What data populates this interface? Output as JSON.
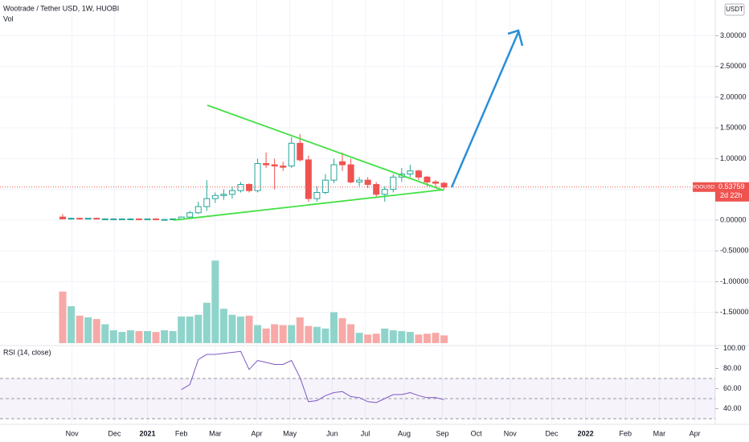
{
  "header": {
    "currency": "USDT"
  },
  "chart_data": [
    {
      "type": "candlestick",
      "title": "Wootrade / Tether USD, 1W, HUOBI",
      "x": [
        0,
        1,
        2,
        3,
        4,
        5,
        6,
        7,
        8,
        9,
        10,
        11,
        12,
        13,
        14,
        15,
        16,
        17,
        18,
        19,
        20,
        21,
        22,
        23,
        24,
        25,
        26,
        27,
        28,
        29,
        30,
        31,
        32,
        33,
        34,
        35,
        36,
        37,
        38,
        39,
        40,
        41,
        42,
        43,
        44,
        45
      ],
      "open": [
        0.05,
        0.02,
        0.03,
        0.02,
        0.03,
        0.02,
        0.02,
        0.02,
        0.02,
        0.02,
        0.01,
        0.02,
        0.01,
        0.01,
        0.02,
        0.05,
        0.12,
        0.22,
        0.35,
        0.4,
        0.42,
        0.48,
        0.58,
        0.48,
        0.92,
        0.9,
        0.88,
        0.88,
        1.25,
        0.98,
        0.35,
        0.45,
        0.65,
        0.95,
        0.9,
        0.62,
        0.65,
        0.58,
        0.42,
        0.5,
        0.7,
        0.75,
        0.8,
        0.7,
        0.62,
        0.6
      ],
      "high": [
        0.1,
        0.04,
        0.04,
        0.03,
        0.04,
        0.03,
        0.03,
        0.03,
        0.03,
        0.03,
        0.02,
        0.03,
        0.02,
        0.03,
        0.06,
        0.15,
        0.3,
        0.65,
        0.45,
        0.5,
        0.55,
        0.62,
        0.6,
        1.0,
        1.1,
        1.0,
        0.95,
        1.35,
        1.4,
        1.05,
        0.55,
        0.75,
        1.0,
        1.1,
        1.0,
        0.7,
        0.7,
        0.62,
        0.55,
        0.75,
        0.85,
        0.9,
        0.82,
        0.72,
        0.65,
        0.62
      ],
      "low": [
        0.01,
        0.01,
        0.01,
        0.01,
        0.02,
        0.01,
        0.01,
        0.01,
        0.01,
        0.01,
        0.0,
        0.01,
        0.0,
        0.0,
        0.01,
        0.04,
        0.1,
        0.15,
        0.28,
        0.33,
        0.35,
        0.45,
        0.45,
        0.45,
        0.85,
        0.5,
        0.8,
        0.85,
        0.95,
        0.3,
        0.3,
        0.42,
        0.6,
        0.8,
        0.6,
        0.55,
        0.52,
        0.38,
        0.3,
        0.45,
        0.62,
        0.7,
        0.65,
        0.55,
        0.52,
        0.5
      ],
      "close": [
        0.02,
        0.03,
        0.02,
        0.03,
        0.02,
        0.02,
        0.02,
        0.02,
        0.02,
        0.01,
        0.02,
        0.01,
        0.01,
        0.02,
        0.05,
        0.12,
        0.22,
        0.35,
        0.4,
        0.42,
        0.48,
        0.58,
        0.48,
        0.92,
        0.9,
        0.88,
        0.86,
        1.25,
        0.98,
        0.35,
        0.45,
        0.65,
        0.9,
        0.9,
        0.62,
        0.65,
        0.58,
        0.42,
        0.5,
        0.7,
        0.75,
        0.8,
        0.7,
        0.62,
        0.6,
        0.53759
      ],
      "up_color": "#26a69a",
      "down_color": "#ef5350",
      "xlim": [
        -7.4,
        77
      ],
      "xticks": [
        {
          "value": 1.1,
          "label": "Nov"
        },
        {
          "value": 6.1,
          "label": "Dec"
        },
        {
          "value": 10,
          "label": "2021"
        },
        {
          "value": 14,
          "label": "Feb"
        },
        {
          "value": 18,
          "label": "Mar"
        },
        {
          "value": 22.9,
          "label": "Apr"
        },
        {
          "value": 26.8,
          "label": "May"
        },
        {
          "value": 31.8,
          "label": "Jun"
        },
        {
          "value": 35.7,
          "label": "Jul"
        },
        {
          "value": 40.3,
          "label": "Aug"
        },
        {
          "value": 44.8,
          "label": "Sep"
        },
        {
          "value": 48.8,
          "label": "Oct"
        },
        {
          "value": 52.8,
          "label": "Nov"
        },
        {
          "value": 57.7,
          "label": "Dec"
        },
        {
          "value": 61.7,
          "label": "2022"
        },
        {
          "value": 66.4,
          "label": "Feb"
        },
        {
          "value": 70.4,
          "label": "Mar"
        },
        {
          "value": 74.6,
          "label": "Apr"
        }
      ],
      "ylim": [
        -2.04,
        3.58
      ],
      "yticks": [
        {
          "value": 3,
          "label": "3.00000"
        },
        {
          "value": 2.5,
          "label": "2.50000"
        },
        {
          "value": 2,
          "label": "2.00000"
        },
        {
          "value": 1.5,
          "label": "1.50000"
        },
        {
          "value": 1,
          "label": "1.00000"
        },
        {
          "value": 0.5,
          "label": "0.50000"
        },
        {
          "value": 0,
          "label": "0.00000"
        },
        {
          "value": -0.5,
          "label": "-0.50000"
        },
        {
          "value": -1,
          "label": "-1.00000"
        },
        {
          "value": -1.5,
          "label": "-1.50000"
        }
      ],
      "grid": true,
      "last_price": {
        "symbol": "WOOUSDT",
        "value": 0.53759,
        "countdown": "2d 22h"
      }
    },
    {
      "type": "bar",
      "title": "Vol",
      "x": [
        0,
        1,
        2,
        3,
        4,
        5,
        6,
        7,
        8,
        9,
        10,
        11,
        12,
        13,
        14,
        15,
        16,
        17,
        18,
        19,
        20,
        21,
        22,
        23,
        24,
        25,
        26,
        27,
        28,
        29,
        30,
        31,
        32,
        33,
        34,
        35,
        36,
        37,
        38,
        39,
        40,
        41,
        42,
        43,
        44,
        45
      ],
      "values": [
        60,
        43,
        32,
        30,
        28,
        22,
        15,
        13,
        15,
        14,
        14,
        13,
        15,
        14,
        31,
        31,
        33,
        47,
        96,
        40,
        33,
        31,
        32,
        21,
        17,
        22,
        21,
        21,
        30,
        20,
        19,
        17,
        36,
        29,
        22,
        12,
        10,
        11,
        17,
        15,
        14,
        13,
        10,
        11,
        12,
        9
      ],
      "ylim": [
        0,
        100
      ],
      "up_color": "#8fd4cb",
      "down_color": "#f7a9a7"
    },
    {
      "type": "line",
      "title": "RSI (14, close)",
      "x": [
        14,
        15,
        16,
        17,
        18,
        19,
        20,
        21,
        22,
        23,
        24,
        25,
        26,
        27,
        28,
        29,
        30,
        31,
        32,
        33,
        34,
        35,
        36,
        37,
        38,
        39,
        40,
        41,
        42,
        43,
        44,
        45
      ],
      "values": [
        59,
        64,
        89,
        94,
        94,
        95,
        96,
        97,
        79,
        88,
        86,
        84,
        84,
        88,
        71,
        47,
        48,
        53,
        56,
        57,
        52,
        51,
        47,
        46,
        50,
        54,
        54,
        56,
        53,
        51,
        51,
        49
      ],
      "color": "#7e57c2",
      "ylim": [
        24.4,
        100.4
      ],
      "yticks": [
        {
          "value": 100,
          "label": "100.00"
        },
        {
          "value": 80,
          "label": "80.00"
        },
        {
          "value": 60,
          "label": "60.00"
        },
        {
          "value": 40,
          "label": "40.00"
        }
      ],
      "levels": [
        70,
        50,
        30
      ]
    }
  ]
}
